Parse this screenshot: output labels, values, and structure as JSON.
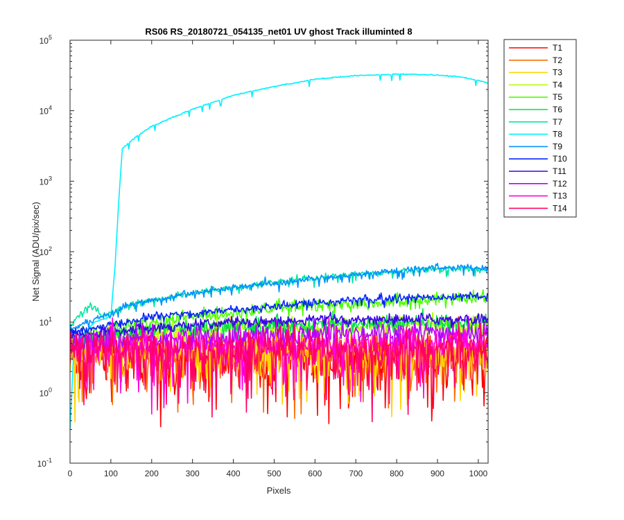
{
  "chart_data": {
    "type": "line",
    "title": "RS06 RS_20180721_054135_net01   UV ghost         Track illuminted 8",
    "xlabel": "Pixels",
    "ylabel": "Net Signal (ADU/pix/sec)",
    "xlim": [
      0,
      1024
    ],
    "ylim": [
      0.1,
      100000
    ],
    "yscale": "log",
    "grid": false,
    "legend_position": "outside-right-top",
    "x_ticks": [
      0,
      100,
      200,
      300,
      400,
      500,
      600,
      700,
      800,
      900,
      1000
    ],
    "x_tick_labels": [
      "0",
      "100",
      "200",
      "300",
      "400",
      "500",
      "600",
      "700",
      "800",
      "900",
      "1000"
    ],
    "y_ticks": [
      0.1,
      1,
      10,
      100,
      1000,
      10000,
      100000
    ],
    "y_tick_labels": [
      {
        "base": "10",
        "exp": "-1"
      },
      {
        "base": "10",
        "exp": "0"
      },
      {
        "base": "10",
        "exp": "1"
      },
      {
        "base": "10",
        "exp": "2"
      },
      {
        "base": "10",
        "exp": "3"
      },
      {
        "base": "10",
        "exp": "4"
      },
      {
        "base": "10",
        "exp": "5"
      }
    ],
    "series": [
      {
        "name": "T1",
        "color": "#ff0000",
        "level": 3.0,
        "noise": 0.95,
        "dips": true,
        "anchors": [
          [
            0,
            3
          ],
          [
            1024,
            3
          ]
        ]
      },
      {
        "name": "T2",
        "color": "#ff6a00",
        "level": 3.5,
        "noise": 0.8,
        "dips": true,
        "anchors": [
          [
            0,
            3.5
          ],
          [
            1024,
            3.5
          ]
        ]
      },
      {
        "name": "T3",
        "color": "#ffd400",
        "level": 3.5,
        "noise": 0.8,
        "dips": true,
        "anchors": [
          [
            0,
            3.5
          ],
          [
            1024,
            3.5
          ]
        ]
      },
      {
        "name": "T4",
        "color": "#b4ff00",
        "level": 8.5,
        "noise": 0.35,
        "dips": false,
        "anchors": [
          [
            0,
            5
          ],
          [
            200,
            7
          ],
          [
            500,
            8.5
          ],
          [
            1024,
            9
          ]
        ]
      },
      {
        "name": "T5",
        "color": "#4dff00",
        "level": 20,
        "noise": 0.25,
        "dips": false,
        "anchors": [
          [
            0,
            6
          ],
          [
            100,
            8
          ],
          [
            300,
            12
          ],
          [
            500,
            16
          ],
          [
            800,
            20
          ],
          [
            1024,
            22
          ]
        ]
      },
      {
        "name": "T6",
        "color": "#00e04a",
        "level": 10,
        "noise": 0.3,
        "dips": false,
        "anchors": [
          [
            0,
            5
          ],
          [
            200,
            8
          ],
          [
            500,
            9
          ],
          [
            1024,
            10
          ]
        ]
      },
      {
        "name": "T7",
        "color": "#00e6a0",
        "level": 60,
        "noise": 0.12,
        "dips": false,
        "anchors": [
          [
            0,
            9
          ],
          [
            30,
            13
          ],
          [
            50,
            18
          ],
          [
            80,
            12
          ],
          [
            150,
            18
          ],
          [
            300,
            26
          ],
          [
            500,
            37
          ],
          [
            700,
            48
          ],
          [
            900,
            58
          ],
          [
            1024,
            56
          ]
        ]
      },
      {
        "name": "T8",
        "color": "#00f0ff",
        "level": 33000,
        "noise": 0.02,
        "dips": false,
        "anchors": [
          [
            0,
            0.3
          ],
          [
            10,
            5
          ],
          [
            60,
            10
          ],
          [
            100,
            12
          ],
          [
            110,
            60
          ],
          [
            120,
            600
          ],
          [
            128,
            2900
          ],
          [
            160,
            4200
          ],
          [
            200,
            6000
          ],
          [
            300,
            10500
          ],
          [
            400,
            16500
          ],
          [
            500,
            22000
          ],
          [
            600,
            28000
          ],
          [
            700,
            31500
          ],
          [
            800,
            33000
          ],
          [
            900,
            32000
          ],
          [
            960,
            30000
          ],
          [
            1024,
            25000
          ]
        ]
      },
      {
        "name": "T9",
        "color": "#0093ff",
        "level": 60,
        "noise": 0.12,
        "dips": false,
        "anchors": [
          [
            0,
            8
          ],
          [
            100,
            13
          ],
          [
            150,
            18
          ],
          [
            300,
            26
          ],
          [
            500,
            36
          ],
          [
            700,
            47
          ],
          [
            900,
            60
          ],
          [
            1024,
            58
          ]
        ]
      },
      {
        "name": "T10",
        "color": "#0a24ff",
        "level": 24,
        "noise": 0.15,
        "dips": false,
        "anchors": [
          [
            0,
            7
          ],
          [
            100,
            9
          ],
          [
            200,
            12
          ],
          [
            400,
            15
          ],
          [
            600,
            19
          ],
          [
            800,
            22
          ],
          [
            1024,
            24
          ]
        ]
      },
      {
        "name": "T11",
        "color": "#3d00e8",
        "level": 12,
        "noise": 0.2,
        "dips": false,
        "anchors": [
          [
            0,
            6
          ],
          [
            150,
            8
          ],
          [
            400,
            10
          ],
          [
            700,
            11
          ],
          [
            1024,
            11
          ]
        ]
      },
      {
        "name": "T12",
        "color": "#b400ff",
        "level": 6,
        "noise": 0.45,
        "dips": false,
        "anchors": [
          [
            0,
            5
          ],
          [
            300,
            6
          ],
          [
            700,
            7
          ],
          [
            1024,
            7
          ]
        ]
      },
      {
        "name": "T13",
        "color": "#ff00e0",
        "level": 5,
        "noise": 0.55,
        "dips": true,
        "anchors": [
          [
            0,
            4.5
          ],
          [
            1024,
            5
          ]
        ]
      },
      {
        "name": "T14",
        "color": "#ff0066",
        "level": 4,
        "noise": 0.75,
        "dips": true,
        "anchors": [
          [
            0,
            4
          ],
          [
            1024,
            4
          ]
        ]
      }
    ]
  }
}
